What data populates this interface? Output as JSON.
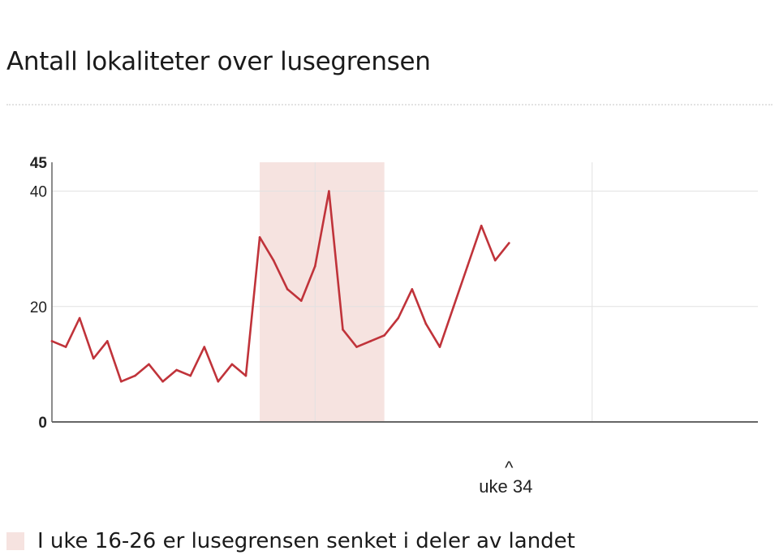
{
  "title": "Antall lokaliteter over lusegrensen",
  "legend": {
    "label": "I uke 16-26 er lusegrensen senket i deler av landet",
    "color": "#f6e3e0"
  },
  "colors": {
    "line": "#c0333a",
    "band": "#f6e3e0",
    "grid": "#e2e2e2",
    "axis": "#666666"
  },
  "chart_data": {
    "type": "line",
    "title": "Antall lokaliteter over lusegrensen",
    "xlabel": "",
    "ylabel": "",
    "ylim": [
      0,
      45
    ],
    "yticks": [
      {
        "value": 0,
        "label": "0",
        "bold": true
      },
      {
        "value": 20,
        "label": "20",
        "bold": false
      },
      {
        "value": 40,
        "label": "40",
        "bold": false
      },
      {
        "value": 45,
        "label": "45",
        "bold": true
      }
    ],
    "xlim": [
      1,
      52
    ],
    "x_gridlines": [
      20,
      40
    ],
    "shaded_band": {
      "from": 16,
      "to": 25
    },
    "annotation": {
      "x": 34,
      "label": "uke 34",
      "marker": "^"
    },
    "series": [
      {
        "name": "",
        "x": [
          1,
          2,
          3,
          4,
          5,
          6,
          7,
          8,
          9,
          10,
          11,
          12,
          13,
          14,
          15,
          16,
          17,
          18,
          19,
          20,
          21,
          22,
          23,
          24,
          25,
          26,
          27,
          28,
          29,
          30,
          31,
          32,
          33,
          34
        ],
        "values": [
          14,
          13,
          18,
          11,
          14,
          7,
          8,
          10,
          7,
          9,
          8,
          13,
          7,
          10,
          8,
          32,
          28,
          23,
          21,
          27,
          40,
          16,
          13,
          14,
          15,
          18,
          23,
          17,
          13,
          20,
          27,
          34,
          28,
          31
        ]
      }
    ]
  }
}
